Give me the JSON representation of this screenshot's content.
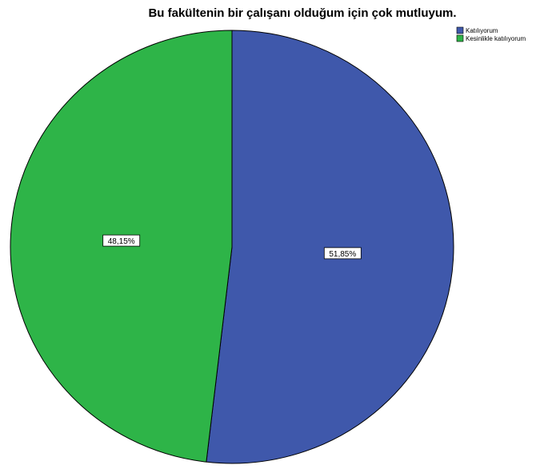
{
  "chart_data": {
    "type": "pie",
    "title": "Bu fakültenin bir çalışanı olduğum için çok mutluyum.",
    "legend_position": "top-right",
    "slices": [
      {
        "label": "Katılıyorum",
        "value": 51.85,
        "value_label": "51,85%",
        "color": "#3f58ab"
      },
      {
        "label": "Kesinlikle katılıyorum",
        "value": 48.15,
        "value_label": "48,15%",
        "color": "#2eb448"
      }
    ]
  }
}
